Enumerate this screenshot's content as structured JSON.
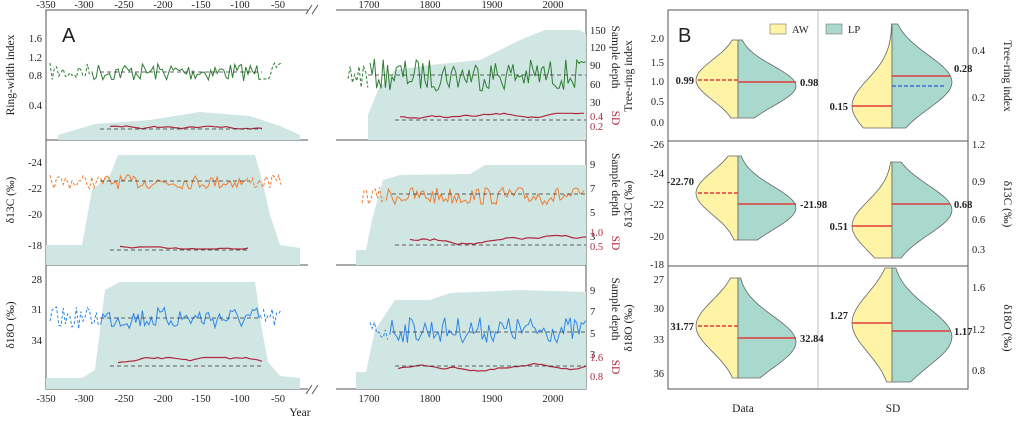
{
  "colors": {
    "ring": "#2e7d32",
    "d13c": "#ef7d32",
    "d18o": "#2f86e6",
    "sd": "#b0283f",
    "depth_fill": "#cfe6e3",
    "aw": "#fff4a6",
    "lp": "#a9d9cd",
    "median_red": "#e03c3c",
    "median_blue": "#3b6fd0"
  },
  "panel_a": {
    "letter": "A",
    "x_label": "Year",
    "left_top_ticks": [
      "-350",
      "-300",
      "-250",
      "-200",
      "-150",
      "-100",
      "-50"
    ],
    "right_top_ticks": [
      "1700",
      "1800",
      "1900",
      "2000"
    ],
    "left_bottom_ticks": [
      "-350",
      "-300",
      "-250",
      "-200",
      "-150",
      "-100",
      "-50"
    ],
    "right_bottom_ticks": [
      "1700",
      "1800",
      "1900",
      "2000"
    ],
    "rows": [
      {
        "id": "ring",
        "ylabel": "Ring-width index",
        "yticks": [
          "1.6",
          "1.2",
          "0.8",
          "0.4"
        ],
        "depth_label": "Sample depth",
        "depth_ticks": [
          "150",
          "120",
          "90",
          "60",
          "30"
        ],
        "sd_label": "SD",
        "sd_ticks": [
          "0.4",
          "0.2"
        ]
      },
      {
        "id": "d13c",
        "ylabel": "δ13C (‰)",
        "yticks": [
          "-24",
          "-22",
          "-20",
          "-18"
        ],
        "depth_label": "Sample depth",
        "depth_ticks": [
          "9",
          "7",
          "5",
          "3"
        ],
        "sd_label": "SD",
        "sd_ticks": [
          "1.0",
          "0.5"
        ]
      },
      {
        "id": "d18o",
        "ylabel": "δ18O (‰)",
        "yticks": [
          "28",
          "31",
          "34"
        ],
        "depth_label": "Sample depth",
        "depth_ticks": [
          "9",
          "7",
          "5",
          "3"
        ],
        "sd_label": "SD",
        "sd_ticks": [
          "1.6",
          "0.8"
        ]
      }
    ]
  },
  "panel_b": {
    "letter": "B",
    "legend": [
      "AW",
      "LP"
    ],
    "x_categories": [
      "Data",
      "SD"
    ],
    "rows": [
      {
        "id": "ring",
        "left_label": "Tree-ring index",
        "left_ticks": [
          "2.0",
          "1.5",
          "1.0",
          "0.5",
          "0.0"
        ],
        "right_label": "Tree-ring index",
        "right_ticks": [
          "0.4",
          "0.2"
        ],
        "data_vals": {
          "aw": "0.99",
          "lp": "0.98"
        },
        "sd_vals": {
          "aw": "0.15",
          "lp": "0.28"
        }
      },
      {
        "id": "d13c",
        "left_label": "δ13C (‰)",
        "left_ticks": [
          "-26",
          "-24",
          "-22",
          "-20",
          "-18"
        ],
        "right_label": "δ13C (‰)",
        "right_ticks": [
          "1.2",
          "0.9",
          "0.6",
          "0.3"
        ],
        "data_vals": {
          "aw": "-22.70",
          "lp": "-21.98"
        },
        "sd_vals": {
          "aw": "0.51",
          "lp": "0.68"
        }
      },
      {
        "id": "d18o",
        "left_label": "δ18O (‰)",
        "left_ticks": [
          "27",
          "30",
          "33",
          "36"
        ],
        "right_label": "δ18O (‰)",
        "right_ticks": [
          "1.6",
          "1.2",
          "0.8"
        ],
        "data_vals": {
          "aw": "31.77",
          "lp": "32.84"
        },
        "sd_vals": {
          "aw": "1.27",
          "lp": "1.17"
        }
      }
    ]
  },
  "chart_data": [
    {
      "type": "line",
      "title": "",
      "xlabel": "Year",
      "x_segments": [
        [
          -350,
          -30
        ],
        [
          1680,
          2015
        ]
      ],
      "series": [
        {
          "name": "",
          "variable": "Ring-width index",
          "ylim": [
            0.1,
            1.85
          ],
          "mean_levels": [
            0.97,
            0.95
          ],
          "sample_depth_scale": [
            0,
            160
          ],
          "sd_range": [
            0.1,
            0.45
          ]
        },
        {
          "name": "",
          "variable": "δ13C (‰)",
          "ylim": [
            -17.5,
            -25
          ],
          "mean_levels": [
            -22.7,
            -21.98
          ],
          "sample_depth_scale": [
            0,
            10.5
          ],
          "sd_range": [
            0.3,
            1.2
          ]
        },
        {
          "name": "",
          "variable": "δ18O (‰)",
          "ylim": [
            27.5,
            37.5
          ],
          "mean_levels": [
            31.77,
            32.84
          ],
          "sample_depth_scale": [
            0,
            10.5
          ],
          "sd_range": [
            0.4,
            2.0
          ]
        }
      ]
    },
    {
      "type": "violin",
      "categories": [
        "Data",
        "SD"
      ],
      "groups": [
        "AW",
        "LP"
      ],
      "panels": [
        {
          "variable": "Tree-ring index",
          "data": {
            "AW": 0.99,
            "LP": 0.98
          },
          "sd": {
            "AW": 0.15,
            "LP": 0.28
          }
        },
        {
          "variable": "δ13C (‰)",
          "data": {
            "AW": -22.7,
            "LP": -21.98
          },
          "sd": {
            "AW": 0.51,
            "LP": 0.68
          }
        },
        {
          "variable": "δ18O (‰)",
          "data": {
            "AW": 31.77,
            "LP": 32.84
          },
          "sd": {
            "AW": 1.27,
            "LP": 1.17
          }
        }
      ]
    }
  ]
}
